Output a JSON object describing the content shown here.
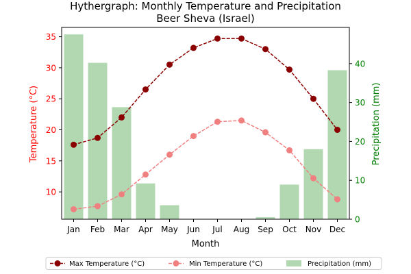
{
  "chart_data": {
    "type": "bar+line",
    "title_line1": "Hythergraph: Monthly Temperature and Precipitation",
    "title_line2": "Beer Sheva (Israel)",
    "xlabel": "Month",
    "ylabel_left": "Temperature (°C)",
    "ylabel_right": "Precipitation (mm)",
    "categories": [
      "Jan",
      "Feb",
      "Mar",
      "Apr",
      "May",
      "Jun",
      "Jul",
      "Aug",
      "Sep",
      "Oct",
      "Nov",
      "Dec"
    ],
    "ylim_left": [
      5.6,
      36.5
    ],
    "ylim_right": [
      0,
      49.3
    ],
    "yticks_left": [
      10,
      15,
      20,
      25,
      30,
      35
    ],
    "yticks_right": [
      0,
      10,
      20,
      30,
      40
    ],
    "colors": {
      "max": "#8b0000",
      "min": "#f08080",
      "precip": "#b1d8b1",
      "left_axis": "#ff0000",
      "right_axis": "#008000"
    },
    "series": [
      {
        "name": "Max Temperature (°C)",
        "kind": "line",
        "axis": "left",
        "values": [
          17.6,
          18.7,
          22.0,
          26.5,
          30.5,
          33.2,
          34.7,
          34.7,
          33.0,
          29.7,
          25.0,
          20.0
        ]
      },
      {
        "name": "Min Temperature (°C)",
        "kind": "line",
        "axis": "left",
        "values": [
          7.2,
          7.7,
          9.6,
          12.8,
          16.0,
          19.0,
          21.3,
          21.5,
          19.6,
          16.7,
          12.2,
          8.8
        ]
      },
      {
        "name": "Precipitation (mm)",
        "kind": "bar",
        "axis": "right",
        "values": [
          47.5,
          40.2,
          28.8,
          9.2,
          3.6,
          0,
          0,
          0,
          0.5,
          8.9,
          18.0,
          38.3
        ]
      }
    ],
    "legend": {
      "position": "bottom-center",
      "max_label": "Max Temperature (°C)",
      "min_label": "Min Temperature (°C)",
      "precip_label": "Precipitation (mm)"
    }
  }
}
